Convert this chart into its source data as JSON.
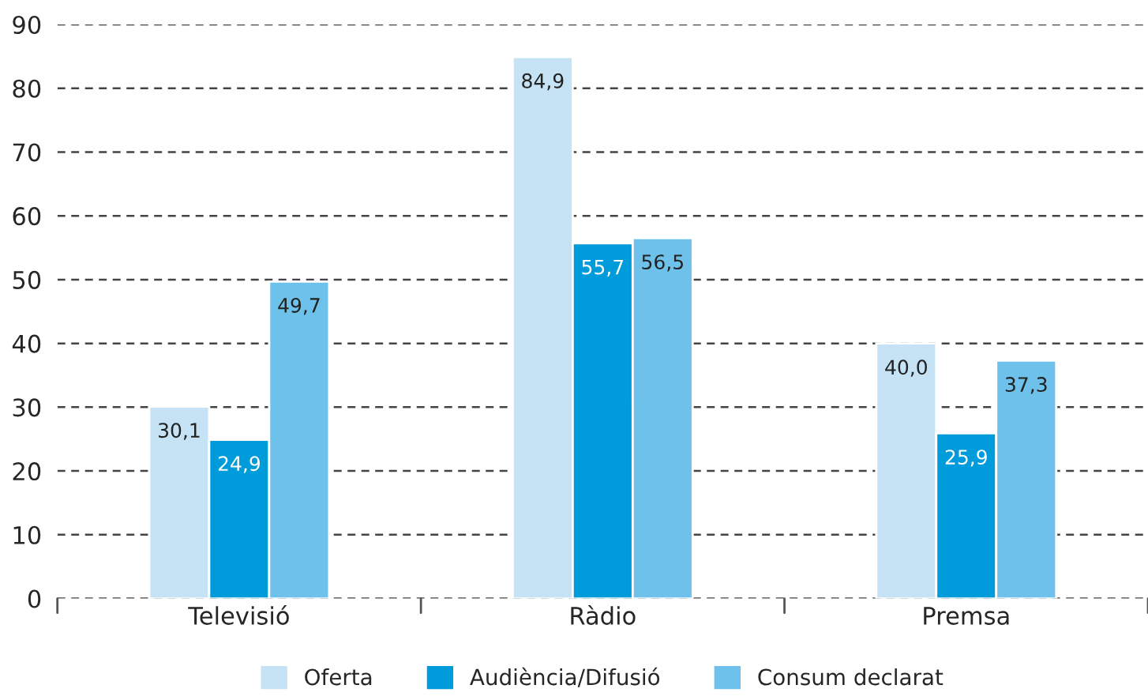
{
  "chart_data": {
    "type": "bar",
    "categories": [
      "Televisió",
      "Ràdio",
      "Premsa"
    ],
    "series": [
      {
        "name": "Oferta",
        "color": "#c5e3f5",
        "values": [
          30.1,
          84.9,
          40.0
        ]
      },
      {
        "name": "Audiència/Difusió",
        "color": "#009bdb",
        "values": [
          24.9,
          55.7,
          25.9
        ]
      },
      {
        "name": "Consum declarat",
        "color": "#6ec1ea",
        "values": [
          49.7,
          56.5,
          37.3
        ]
      }
    ],
    "value_labels": [
      [
        "30,1",
        "84,9",
        "40,0"
      ],
      [
        "24,9",
        "55,7",
        "25,9"
      ],
      [
        "49,7",
        "56,5",
        "37,3"
      ]
    ],
    "ylim": [
      0,
      90
    ],
    "yticks": [
      0,
      10,
      20,
      30,
      40,
      50,
      60,
      70,
      80,
      90
    ],
    "grid": "y",
    "legend": "bottom"
  }
}
